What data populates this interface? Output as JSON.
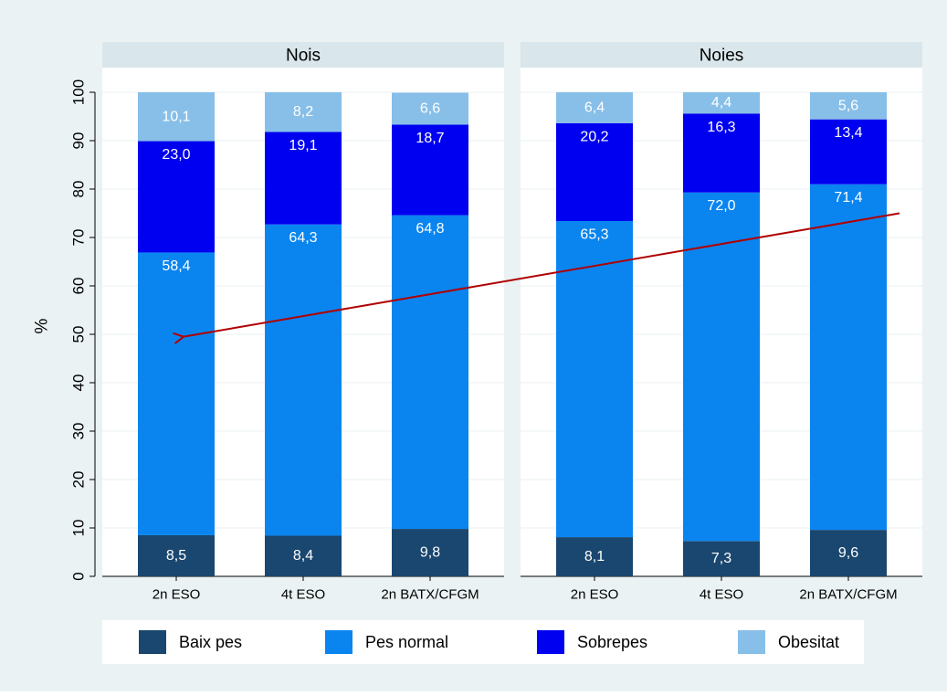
{
  "chart_data": {
    "type": "bar",
    "stacked": true,
    "ylabel": "%",
    "ylim": [
      0,
      100
    ],
    "yticks": [
      "0",
      "10",
      "20",
      "30",
      "40",
      "50",
      "60",
      "70",
      "80",
      "90",
      "100"
    ],
    "categories": [
      "2n ESO",
      "4t ESO",
      "2n BATX/CFGM"
    ],
    "panels": [
      {
        "title": "Nois",
        "series": [
          {
            "name": "Baix pes",
            "values": [
              8.5,
              8.4,
              9.8
            ],
            "labels": [
              "8,5",
              "8,4",
              "9,8"
            ]
          },
          {
            "name": "Pes normal",
            "values": [
              58.4,
              64.3,
              64.8
            ],
            "labels": [
              "58,4",
              "64,3",
              "64,8"
            ]
          },
          {
            "name": "Sobrepes",
            "values": [
              23.0,
              19.1,
              18.7
            ],
            "labels": [
              "23,0",
              "19,1",
              "18,7"
            ]
          },
          {
            "name": "Obesitat",
            "values": [
              10.1,
              8.2,
              6.6
            ],
            "labels": [
              "10,1",
              "8,2",
              "6,6"
            ]
          }
        ]
      },
      {
        "title": "Noies",
        "series": [
          {
            "name": "Baix pes",
            "values": [
              8.1,
              7.3,
              9.6
            ],
            "labels": [
              "8,1",
              "7,3",
              "9,6"
            ]
          },
          {
            "name": "Pes normal",
            "values": [
              65.3,
              72.0,
              71.4
            ],
            "labels": [
              "65,3",
              "72,0",
              "71,4"
            ]
          },
          {
            "name": "Sobrepes",
            "values": [
              20.2,
              16.3,
              13.4
            ],
            "labels": [
              "20,2",
              "16,3",
              "13,4"
            ]
          },
          {
            "name": "Obesitat",
            "values": [
              6.4,
              4.4,
              5.6
            ],
            "labels": [
              "6,4",
              "4,4",
              "5,6"
            ]
          }
        ]
      }
    ],
    "legend": {
      "position": "bottom",
      "items": [
        "Baix pes",
        "Pes normal",
        "Sobrepes",
        "Obesitat"
      ]
    },
    "colors": {
      "Baix pes": "#1a476f",
      "Pes normal": "#0a85f0",
      "Sobrepes": "#0000f0",
      "Obesitat": "#87bfe8",
      "background": "#eaf2f3",
      "strip": "#d9e6eb",
      "arrow": "#b00000"
    },
    "annotations": [
      {
        "type": "arrow",
        "from": {
          "panel": 1,
          "category": 2,
          "y": 75
        },
        "to": {
          "panel": 0,
          "category": 0,
          "y": 49.5
        }
      }
    ],
    "grid": true
  }
}
